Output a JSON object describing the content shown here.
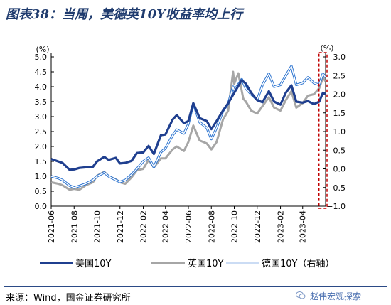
{
  "title": "图表38：当周，美德英10Y收益率均上行",
  "source": "来源：Wind，国金证券研究所",
  "watermark": "赵伟宏观探索",
  "icons": {
    "watermark": "wechat-icon"
  },
  "colors": {
    "us": "#1f3f8f",
    "uk": "#a6a6a6",
    "de": "#2e75d0",
    "highlight": "#c00000",
    "title": "#1f3b6e"
  },
  "chart_data": {
    "type": "line",
    "x_ticks": [
      "2021-06",
      "2021-08",
      "2021-10",
      "2021-12",
      "2022-02",
      "2022-04",
      "2022-06",
      "2022-08",
      "2022-10",
      "2022-12",
      "2023-02",
      "2023-04"
    ],
    "y_left": {
      "unit": "(%)",
      "range": [
        0.0,
        5.0
      ],
      "ticks": [
        "0.0",
        "0.5",
        "1.0",
        "1.5",
        "2.0",
        "2.5",
        "3.0",
        "3.5",
        "4.0",
        "4.5",
        "5.0"
      ]
    },
    "y_right": {
      "unit": "(%)",
      "range": [
        -1.0,
        3.0
      ],
      "ticks": [
        "−1.0",
        "−0.5",
        "0.0",
        "0.5",
        "1.0",
        "1.5",
        "2.0",
        "2.5",
        "3.0"
      ]
    },
    "x_range": [
      "2021-06-01",
      "2023-06-01"
    ],
    "highlight": {
      "from": "2023-05-22",
      "to": "2023-06-01"
    },
    "series": [
      {
        "name": "美国10Y",
        "axis": "left",
        "style": "thick",
        "points": [
          [
            "2021-06-01",
            1.58
          ],
          [
            "2021-07-01",
            1.45
          ],
          [
            "2021-07-20",
            1.22
          ],
          [
            "2021-08-01",
            1.23
          ],
          [
            "2021-08-15",
            1.28
          ],
          [
            "2021-09-01",
            1.3
          ],
          [
            "2021-09-20",
            1.32
          ],
          [
            "2021-10-01",
            1.5
          ],
          [
            "2021-10-20",
            1.65
          ],
          [
            "2021-11-01",
            1.55
          ],
          [
            "2021-11-20",
            1.62
          ],
          [
            "2021-12-01",
            1.43
          ],
          [
            "2021-12-15",
            1.45
          ],
          [
            "2022-01-01",
            1.52
          ],
          [
            "2022-01-15",
            1.78
          ],
          [
            "2022-02-01",
            1.8
          ],
          [
            "2022-02-15",
            2.02
          ],
          [
            "2022-03-01",
            1.75
          ],
          [
            "2022-03-20",
            2.38
          ],
          [
            "2022-04-01",
            2.4
          ],
          [
            "2022-04-20",
            2.9
          ],
          [
            "2022-05-01",
            3.05
          ],
          [
            "2022-05-20",
            2.78
          ],
          [
            "2022-06-01",
            2.85
          ],
          [
            "2022-06-14",
            3.45
          ],
          [
            "2022-07-01",
            2.95
          ],
          [
            "2022-07-20",
            2.85
          ],
          [
            "2022-08-01",
            2.58
          ],
          [
            "2022-08-15",
            2.85
          ],
          [
            "2022-09-01",
            3.2
          ],
          [
            "2022-09-15",
            3.45
          ],
          [
            "2022-10-01",
            3.8
          ],
          [
            "2022-10-21",
            4.22
          ],
          [
            "2022-11-01",
            4.1
          ],
          [
            "2022-11-15",
            3.8
          ],
          [
            "2022-12-01",
            3.55
          ],
          [
            "2022-12-15",
            3.48
          ],
          [
            "2023-01-01",
            3.85
          ],
          [
            "2023-01-15",
            3.5
          ],
          [
            "2023-02-01",
            3.4
          ],
          [
            "2023-02-15",
            3.8
          ],
          [
            "2023-03-02",
            4.05
          ],
          [
            "2023-03-15",
            3.5
          ],
          [
            "2023-04-01",
            3.47
          ],
          [
            "2023-04-15",
            3.52
          ],
          [
            "2023-05-01",
            3.42
          ],
          [
            "2023-05-15",
            3.5
          ],
          [
            "2023-05-25",
            3.8
          ],
          [
            "2023-06-01",
            3.75
          ]
        ]
      },
      {
        "name": "英国10Y",
        "axis": "left",
        "style": "medium",
        "points": [
          [
            "2021-06-01",
            0.8
          ],
          [
            "2021-06-20",
            0.75
          ],
          [
            "2021-07-01",
            0.7
          ],
          [
            "2021-07-20",
            0.55
          ],
          [
            "2021-08-01",
            0.58
          ],
          [
            "2021-08-15",
            0.55
          ],
          [
            "2021-09-01",
            0.7
          ],
          [
            "2021-09-20",
            0.8
          ],
          [
            "2021-10-01",
            1.02
          ],
          [
            "2021-10-20",
            1.15
          ],
          [
            "2021-11-01",
            1.0
          ],
          [
            "2021-11-20",
            0.9
          ],
          [
            "2021-12-01",
            0.8
          ],
          [
            "2021-12-15",
            0.75
          ],
          [
            "2022-01-01",
            0.97
          ],
          [
            "2022-01-15",
            1.2
          ],
          [
            "2022-02-01",
            1.25
          ],
          [
            "2022-02-15",
            1.55
          ],
          [
            "2022-03-01",
            1.3
          ],
          [
            "2022-03-20",
            1.6
          ],
          [
            "2022-04-01",
            1.6
          ],
          [
            "2022-04-20",
            1.9
          ],
          [
            "2022-05-01",
            2.0
          ],
          [
            "2022-05-20",
            1.85
          ],
          [
            "2022-06-01",
            2.15
          ],
          [
            "2022-06-14",
            2.7
          ],
          [
            "2022-07-01",
            2.2
          ],
          [
            "2022-07-20",
            2.1
          ],
          [
            "2022-08-01",
            1.9
          ],
          [
            "2022-08-15",
            2.15
          ],
          [
            "2022-09-01",
            2.9
          ],
          [
            "2022-09-15",
            3.2
          ],
          [
            "2022-09-28",
            4.5
          ],
          [
            "2022-10-01",
            4.1
          ],
          [
            "2022-10-12",
            4.45
          ],
          [
            "2022-10-25",
            3.6
          ],
          [
            "2022-11-01",
            3.5
          ],
          [
            "2022-11-15",
            3.2
          ],
          [
            "2022-12-01",
            3.1
          ],
          [
            "2022-12-15",
            3.35
          ],
          [
            "2023-01-01",
            3.65
          ],
          [
            "2023-01-15",
            3.3
          ],
          [
            "2023-02-01",
            3.2
          ],
          [
            "2023-02-15",
            3.55
          ],
          [
            "2023-03-02",
            3.85
          ],
          [
            "2023-03-15",
            3.3
          ],
          [
            "2023-04-01",
            3.45
          ],
          [
            "2023-04-15",
            3.7
          ],
          [
            "2023-05-01",
            3.75
          ],
          [
            "2023-05-15",
            3.95
          ],
          [
            "2023-05-25",
            4.3
          ],
          [
            "2023-06-01",
            4.18
          ]
        ]
      },
      {
        "name": "德国10Y（右轴）",
        "axis": "right",
        "style": "double",
        "points": [
          [
            "2021-06-01",
            -0.2
          ],
          [
            "2021-06-20",
            -0.25
          ],
          [
            "2021-07-01",
            -0.3
          ],
          [
            "2021-07-20",
            -0.45
          ],
          [
            "2021-08-01",
            -0.5
          ],
          [
            "2021-08-15",
            -0.46
          ],
          [
            "2021-09-01",
            -0.4
          ],
          [
            "2021-09-20",
            -0.3
          ],
          [
            "2021-10-01",
            -0.2
          ],
          [
            "2021-10-20",
            -0.1
          ],
          [
            "2021-11-01",
            -0.2
          ],
          [
            "2021-11-20",
            -0.3
          ],
          [
            "2021-12-01",
            -0.35
          ],
          [
            "2021-12-15",
            -0.3
          ],
          [
            "2022-01-01",
            -0.15
          ],
          [
            "2022-01-15",
            0.0
          ],
          [
            "2022-02-01",
            0.2
          ],
          [
            "2022-02-15",
            0.3
          ],
          [
            "2022-03-01",
            0.05
          ],
          [
            "2022-03-20",
            0.45
          ],
          [
            "2022-04-01",
            0.55
          ],
          [
            "2022-04-20",
            0.9
          ],
          [
            "2022-05-01",
            1.05
          ],
          [
            "2022-05-20",
            0.95
          ],
          [
            "2022-06-01",
            1.2
          ],
          [
            "2022-06-14",
            1.75
          ],
          [
            "2022-07-01",
            1.25
          ],
          [
            "2022-07-20",
            1.1
          ],
          [
            "2022-08-01",
            0.8
          ],
          [
            "2022-08-15",
            1.1
          ],
          [
            "2022-09-01",
            1.55
          ],
          [
            "2022-09-15",
            1.75
          ],
          [
            "2022-09-28",
            2.2
          ],
          [
            "2022-10-01",
            2.1
          ],
          [
            "2022-10-21",
            2.4
          ],
          [
            "2022-11-01",
            2.15
          ],
          [
            "2022-11-15",
            2.0
          ],
          [
            "2022-12-01",
            1.85
          ],
          [
            "2022-12-15",
            2.25
          ],
          [
            "2023-01-01",
            2.55
          ],
          [
            "2023-01-15",
            2.2
          ],
          [
            "2023-02-01",
            2.25
          ],
          [
            "2023-02-15",
            2.5
          ],
          [
            "2023-03-02",
            2.75
          ],
          [
            "2023-03-15",
            2.25
          ],
          [
            "2023-04-01",
            2.3
          ],
          [
            "2023-04-15",
            2.45
          ],
          [
            "2023-05-01",
            2.3
          ],
          [
            "2023-05-15",
            2.25
          ],
          [
            "2023-05-25",
            2.55
          ],
          [
            "2023-06-01",
            2.45
          ]
        ]
      }
    ]
  }
}
